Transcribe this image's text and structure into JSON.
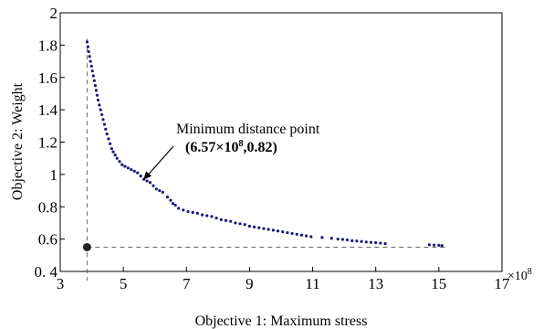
{
  "chart_data": {
    "type": "scatter",
    "xlabel": "Objective 1: Maximum stress",
    "ylabel": "Objective 2: Weight",
    "x_multiplier_label": "×10",
    "x_multiplier_exp": "8",
    "xlim": [
      3,
      17
    ],
    "ylim": [
      0.4,
      2
    ],
    "xticks": [
      3,
      5,
      7,
      9,
      11,
      13,
      15,
      17
    ],
    "yticks": [
      0.4,
      0.6,
      0.8,
      1,
      1.2,
      1.4,
      1.6,
      1.8,
      2
    ],
    "grid": false,
    "series": [
      {
        "color": "#1a1a7a",
        "points": [
          [
            3.85,
            1.82
          ],
          [
            3.88,
            1.79
          ],
          [
            3.9,
            1.76
          ],
          [
            3.93,
            1.73
          ],
          [
            3.96,
            1.7
          ],
          [
            3.99,
            1.67
          ],
          [
            4.02,
            1.64
          ],
          [
            4.05,
            1.61
          ],
          [
            4.08,
            1.58
          ],
          [
            4.11,
            1.55
          ],
          [
            4.14,
            1.52
          ],
          [
            4.17,
            1.49
          ],
          [
            4.2,
            1.46
          ],
          [
            4.24,
            1.43
          ],
          [
            4.28,
            1.4
          ],
          [
            4.32,
            1.37
          ],
          [
            4.36,
            1.34
          ],
          [
            4.4,
            1.31
          ],
          [
            4.44,
            1.28
          ],
          [
            4.48,
            1.25
          ],
          [
            4.53,
            1.22
          ],
          [
            4.58,
            1.19
          ],
          [
            4.63,
            1.16
          ],
          [
            4.68,
            1.14
          ],
          [
            4.74,
            1.12
          ],
          [
            4.8,
            1.1
          ],
          [
            4.88,
            1.08
          ],
          [
            4.96,
            1.06
          ],
          [
            5.05,
            1.05
          ],
          [
            5.15,
            1.04
          ],
          [
            5.25,
            1.03
          ],
          [
            5.35,
            1.02
          ],
          [
            5.45,
            1.01
          ],
          [
            5.55,
            0.99
          ],
          [
            5.65,
            0.97
          ],
          [
            5.75,
            0.96
          ],
          [
            5.85,
            0.95
          ],
          [
            5.95,
            0.93
          ],
          [
            6.05,
            0.91
          ],
          [
            6.15,
            0.9
          ],
          [
            6.25,
            0.89
          ],
          [
            6.4,
            0.86
          ],
          [
            6.5,
            0.84
          ],
          [
            6.57,
            0.82
          ],
          [
            6.65,
            0.81
          ],
          [
            6.75,
            0.79
          ],
          [
            6.9,
            0.78
          ],
          [
            7.05,
            0.77
          ],
          [
            7.2,
            0.765
          ],
          [
            7.35,
            0.76
          ],
          [
            7.5,
            0.75
          ],
          [
            7.65,
            0.745
          ],
          [
            7.8,
            0.74
          ],
          [
            7.95,
            0.73
          ],
          [
            8.1,
            0.72
          ],
          [
            8.25,
            0.715
          ],
          [
            8.4,
            0.71
          ],
          [
            8.55,
            0.7
          ],
          [
            8.7,
            0.695
          ],
          [
            8.85,
            0.69
          ],
          [
            9.0,
            0.68
          ],
          [
            9.15,
            0.675
          ],
          [
            9.3,
            0.67
          ],
          [
            9.45,
            0.665
          ],
          [
            9.6,
            0.66
          ],
          [
            9.75,
            0.655
          ],
          [
            9.9,
            0.65
          ],
          [
            10.05,
            0.645
          ],
          [
            10.2,
            0.64
          ],
          [
            10.35,
            0.635
          ],
          [
            10.5,
            0.63
          ],
          [
            10.65,
            0.625
          ],
          [
            10.8,
            0.62
          ],
          [
            10.95,
            0.615
          ],
          [
            11.3,
            0.61
          ],
          [
            11.6,
            0.605
          ],
          [
            11.8,
            0.6
          ],
          [
            11.95,
            0.598
          ],
          [
            12.1,
            0.595
          ],
          [
            12.25,
            0.59
          ],
          [
            12.4,
            0.588
          ],
          [
            12.55,
            0.585
          ],
          [
            12.7,
            0.582
          ],
          [
            12.85,
            0.58
          ],
          [
            13.0,
            0.578
          ],
          [
            13.15,
            0.575
          ],
          [
            13.3,
            0.572
          ],
          [
            14.7,
            0.565
          ],
          [
            14.85,
            0.563
          ],
          [
            15.0,
            0.561
          ],
          [
            15.1,
            0.56
          ]
        ]
      }
    ],
    "ideal_point": {
      "x": 3.85,
      "y": 0.55
    },
    "reference_lines": {
      "vertical_x": 3.85,
      "horizontal_y": 0.55
    },
    "annotation": {
      "label": "Minimum distance point",
      "coords_text": "(6.57×10",
      "coords_exp": "8",
      "coords_tail": ",0.82)",
      "point": {
        "x": 5.55,
        "y": 0.95
      }
    }
  }
}
